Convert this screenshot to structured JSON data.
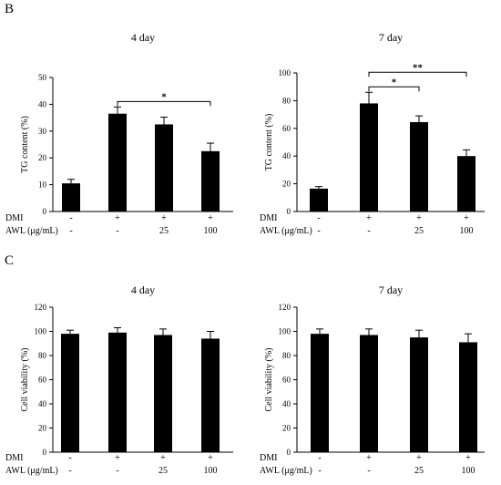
{
  "panels": [
    {
      "letter": "B"
    },
    {
      "letter": "C"
    }
  ],
  "chart_data": [
    {
      "panel": "B",
      "type": "bar",
      "title": "4 day",
      "ylabel": "TG content (%)",
      "ylim": [
        0,
        50
      ],
      "yticks": [
        0,
        10,
        20,
        30,
        40,
        50
      ],
      "values": [
        10.5,
        36.5,
        32.5,
        22.5
      ],
      "errors": [
        1.5,
        2.5,
        2.7,
        3.0
      ],
      "treatments": [
        {
          "label": "DMI",
          "values": [
            "-",
            "+",
            "+",
            "+"
          ]
        },
        {
          "label": "AWL (μg/mL)",
          "values": [
            "-",
            "-",
            "25",
            "100"
          ]
        }
      ],
      "significance": [
        {
          "from": 1,
          "to": 3,
          "label": "*"
        }
      ]
    },
    {
      "panel": "B",
      "type": "bar",
      "title": "7 day",
      "ylabel": "TG content (%)",
      "ylim": [
        0,
        100
      ],
      "yticks": [
        0,
        20,
        40,
        60,
        80,
        100
      ],
      "values": [
        16.5,
        78,
        64.5,
        40
      ],
      "errors": [
        1.5,
        8,
        4.5,
        4.5
      ],
      "treatments": [
        {
          "label": "DMI",
          "values": [
            "-",
            "+",
            "+",
            "+"
          ]
        },
        {
          "label": "AWL (μg/mL)",
          "values": [
            "-",
            "-",
            "25",
            "100"
          ]
        }
      ],
      "significance": [
        {
          "from": 1,
          "to": 2,
          "label": "*"
        },
        {
          "from": 1,
          "to": 3,
          "label": "**"
        }
      ]
    },
    {
      "panel": "C",
      "type": "bar",
      "title": "4 day",
      "ylabel": "Cell viability (%)",
      "ylim": [
        0,
        120
      ],
      "yticks": [
        0,
        20,
        40,
        60,
        80,
        100,
        120
      ],
      "values": [
        98,
        99,
        97,
        94
      ],
      "errors": [
        3,
        4,
        5,
        6
      ],
      "treatments": [
        {
          "label": "DMI",
          "values": [
            "-",
            "+",
            "+",
            "+"
          ]
        },
        {
          "label": "AWL (μg/mL)",
          "values": [
            "-",
            "-",
            "25",
            "100"
          ]
        }
      ],
      "significance": []
    },
    {
      "panel": "C",
      "type": "bar",
      "title": "7 day",
      "ylabel": "Cell viability (%)",
      "ylim": [
        0,
        120
      ],
      "yticks": [
        0,
        20,
        40,
        60,
        80,
        100,
        120
      ],
      "values": [
        98,
        97,
        95,
        91
      ],
      "errors": [
        4,
        5,
        6,
        7
      ],
      "treatments": [
        {
          "label": "DMI",
          "values": [
            "-",
            "+",
            "+",
            "+"
          ]
        },
        {
          "label": "AWL (μg/mL)",
          "values": [
            "-",
            "-",
            "25",
            "100"
          ]
        }
      ],
      "significance": []
    }
  ]
}
